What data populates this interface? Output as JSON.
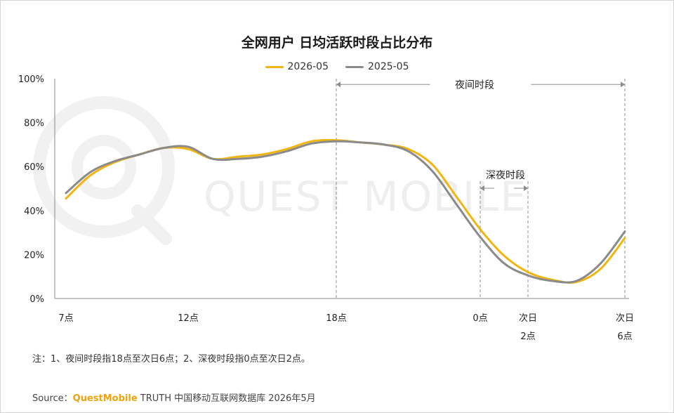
{
  "title": "全网用户 日均活跃时段占比分布",
  "legend": [
    {
      "name": "2026-05",
      "color": "#f2b50f"
    },
    {
      "name": "2025-05",
      "color": "#8a8a8a"
    }
  ],
  "watermark": "QUEST MOBILE",
  "note": "注：1、夜间时段指18点至次日6点；2、深夜时段指0点至次日2点。",
  "source": {
    "prefix": "Source：",
    "brand": "QuestMobile",
    "suffix": " TRUTH 中国移动互联网数据库 2026年5月"
  },
  "chart_data": {
    "type": "line",
    "xlabel": "",
    "ylabel": "",
    "ylim": [
      0,
      100
    ],
    "yticks": [
      "0%",
      "20%",
      "40%",
      "60%",
      "80%",
      "100%"
    ],
    "xticks": [
      {
        "hour": 7,
        "lines": [
          "7点"
        ]
      },
      {
        "hour": 12,
        "lines": [
          "12点"
        ]
      },
      {
        "hour": 18,
        "lines": [
          "18点"
        ]
      },
      {
        "hour": 24,
        "lines": [
          "0点"
        ]
      },
      {
        "hour": 26,
        "lines": [
          "次日",
          "2点"
        ]
      },
      {
        "hour": 30,
        "lines": [
          "次日",
          "6点"
        ]
      }
    ],
    "annotations": [
      {
        "label": "夜间时段",
        "from_hour": 18,
        "to_hour": 30,
        "y": 98
      },
      {
        "label": "深夜时段",
        "from_hour": 24,
        "to_hour": 26,
        "y": 54
      }
    ],
    "series": [
      {
        "name": "2026-05",
        "color": "#f2b50f",
        "x": [
          7,
          8,
          9,
          10,
          11,
          12,
          13,
          14,
          15,
          16,
          17,
          18,
          19,
          20,
          21,
          22,
          23,
          24,
          25,
          26,
          27,
          28,
          29,
          30
        ],
        "values": [
          45.5,
          56,
          62,
          65.5,
          68.5,
          68,
          63.5,
          64.5,
          65.5,
          68,
          71.5,
          72,
          71,
          70,
          68,
          61,
          46.5,
          31.5,
          19.5,
          12,
          8.5,
          7.5,
          13.5,
          27.5
        ]
      },
      {
        "name": "2025-05",
        "color": "#8a8a8a",
        "x": [
          7,
          8,
          9,
          10,
          11,
          12,
          13,
          14,
          15,
          16,
          17,
          18,
          19,
          20,
          21,
          22,
          23,
          24,
          25,
          26,
          27,
          28,
          29,
          30
        ],
        "values": [
          48,
          57.5,
          62.5,
          65.5,
          68.5,
          69,
          63.5,
          63.5,
          64.5,
          67,
          70.5,
          71.5,
          71,
          70,
          67,
          58,
          43,
          28,
          16,
          10.5,
          8,
          8,
          16,
          30.5
        ]
      }
    ]
  }
}
